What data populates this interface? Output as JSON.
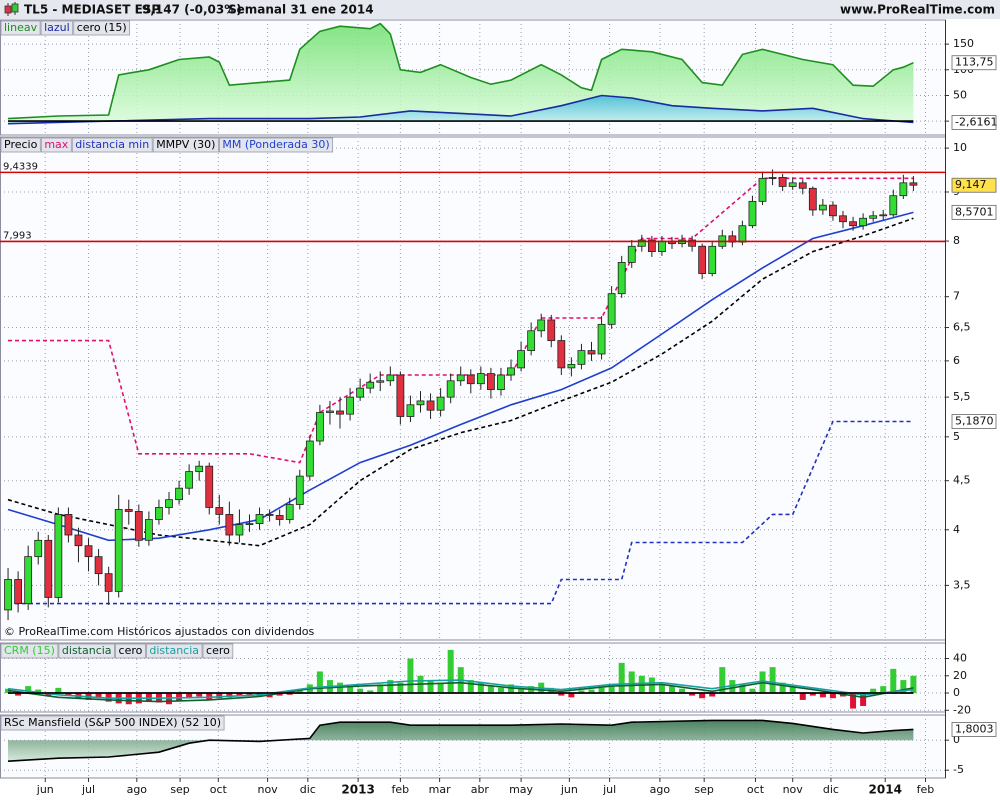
{
  "header": {
    "symbol": "TL5 - MEDIASET ESP",
    "change": "9,147 (-0,03%)",
    "period": "Semanal  31 ene 2014",
    "site": "www.ProRealTime.com"
  },
  "x_axis": {
    "xlim": [
      -0.8,
      93.14
    ],
    "xticks": [
      {
        "value": 3.7,
        "label": "jun"
      },
      {
        "value": 8,
        "label": "jul"
      },
      {
        "value": 12.8,
        "label": "ago"
      },
      {
        "value": 17.1,
        "label": "sep"
      },
      {
        "value": 20.9,
        "label": "oct"
      },
      {
        "value": 25.8,
        "label": "nov"
      },
      {
        "value": 29.8,
        "label": "dic"
      },
      {
        "value": 34.8,
        "label": "2013"
      },
      {
        "value": 39,
        "label": "feb"
      },
      {
        "value": 42.9,
        "label": "mar"
      },
      {
        "value": 46.9,
        "label": "abr"
      },
      {
        "value": 51,
        "label": "may"
      },
      {
        "value": 55.8,
        "label": "jun"
      },
      {
        "value": 59.8,
        "label": "jul"
      },
      {
        "value": 64.8,
        "label": "ago"
      },
      {
        "value": 69.2,
        "label": "sep"
      },
      {
        "value": 74.3,
        "label": "oct"
      },
      {
        "value": 78,
        "label": "nov"
      },
      {
        "value": 81.8,
        "label": "dic"
      },
      {
        "value": 87.2,
        "label": "2014"
      },
      {
        "value": 91.2,
        "label": "feb"
      }
    ]
  },
  "chart_data": [
    {
      "type": "area",
      "ylim": [
        -27,
        197
      ],
      "yticks": [
        0,
        50,
        100,
        150
      ],
      "grid": true,
      "series": [
        {
          "name": "lineav",
          "color": "#1e8e1e",
          "style": "area",
          "fill": "url(#gGreen)",
          "x": [
            0,
            5,
            10,
            11,
            14,
            17,
            20,
            21,
            22,
            25,
            28,
            29,
            31,
            33,
            36,
            37,
            38,
            39,
            41,
            43,
            46,
            48,
            50,
            53,
            55,
            57,
            58,
            59,
            61,
            64,
            67,
            69,
            71,
            73,
            75,
            77,
            79,
            82,
            84,
            86,
            88,
            89,
            90
          ],
          "values": [
            5,
            10,
            12,
            90,
            100,
            120,
            125,
            115,
            70,
            75,
            80,
            140,
            175,
            185,
            180,
            190,
            170,
            100,
            95,
            110,
            85,
            72,
            80,
            110,
            90,
            65,
            60,
            120,
            140,
            135,
            120,
            75,
            70,
            130,
            140,
            130,
            120,
            110,
            70,
            68,
            100,
            105,
            113.75
          ]
        },
        {
          "name": "lazul",
          "color": "#1a2aa0",
          "style": "area",
          "fill": "url(#gCyan)",
          "x": [
            0,
            10,
            20,
            30,
            35,
            40,
            45,
            50,
            55,
            59,
            62,
            66,
            70,
            75,
            80,
            85,
            90
          ],
          "values": [
            -5,
            0,
            5,
            5,
            8,
            20,
            15,
            10,
            30,
            50,
            45,
            30,
            25,
            20,
            25,
            5,
            -2.6161
          ]
        },
        {
          "name": "cero (15)",
          "color": "#000000",
          "style": "line",
          "x": [
            0,
            90
          ],
          "values": [
            0,
            0
          ]
        }
      ],
      "last_labels": [
        {
          "value": 113.75,
          "label": "113,75"
        },
        {
          "value": -2.6161,
          "label": "-2,6161"
        }
      ]
    },
    {
      "type": "candlestick",
      "log": true,
      "ylim": [
        3.07,
        10.27
      ],
      "grid": true,
      "yticks": [
        {
          "value": 3.5,
          "label": "3,5"
        },
        4,
        {
          "value": 4.5,
          "label": "4,5"
        },
        5,
        {
          "value": 5.5,
          "label": "5,5"
        },
        6,
        {
          "value": 6.5,
          "label": "6,5"
        },
        7,
        8,
        9,
        10
      ],
      "candles": {
        "name": "Precio",
        "color": "#000000",
        "up_color": "#33dd33",
        "down_color": "#e03040",
        "open": [
          3.3,
          3.55,
          3.35,
          3.75,
          3.9,
          3.4,
          4.15,
          3.95,
          3.85,
          3.75,
          3.6,
          3.45,
          4.2,
          4.18,
          3.9,
          4.1,
          4.22,
          4.3,
          4.42,
          4.6,
          4.66,
          4.22,
          4.15,
          3.95,
          4.05,
          4.06,
          4.15,
          4.14,
          4.1,
          4.25,
          4.55,
          4.95,
          5.3,
          5.32,
          5.28,
          5.5,
          5.62,
          5.7,
          5.72,
          5.8,
          5.25,
          5.4,
          5.45,
          5.33,
          5.5,
          5.72,
          5.8,
          5.68,
          5.82,
          5.6,
          5.8,
          5.9,
          6.15,
          6.45,
          6.62,
          6.3,
          5.9,
          5.95,
          6.15,
          6.1,
          6.55,
          7.05,
          7.6,
          7.9,
          8.02,
          7.8,
          8.0,
          7.95,
          8.02,
          7.9,
          7.4,
          7.9,
          8.1,
          7.98,
          8.3,
          8.8,
          9.3,
          9.32,
          9.12,
          9.2,
          9.08,
          8.62,
          8.72,
          8.5,
          8.38,
          8.3,
          8.45,
          8.5,
          8.52,
          8.92,
          9.2
        ],
        "high": [
          3.65,
          3.62,
          3.85,
          3.98,
          3.95,
          4.22,
          4.22,
          4.02,
          3.92,
          3.82,
          3.66,
          4.35,
          4.3,
          4.25,
          4.18,
          4.3,
          4.38,
          4.5,
          4.68,
          4.72,
          4.7,
          4.35,
          4.28,
          4.2,
          4.15,
          4.22,
          4.2,
          4.2,
          4.32,
          4.62,
          5.02,
          5.4,
          5.45,
          5.5,
          5.62,
          5.75,
          5.82,
          5.85,
          5.92,
          5.85,
          5.52,
          5.58,
          5.55,
          5.62,
          5.82,
          5.92,
          5.88,
          5.92,
          5.9,
          5.9,
          6.02,
          6.28,
          6.58,
          6.72,
          6.7,
          6.38,
          6.05,
          6.25,
          6.28,
          6.68,
          7.18,
          7.72,
          8.02,
          8.12,
          8.1,
          8.1,
          8.08,
          8.12,
          8.1,
          7.95,
          8.0,
          8.22,
          8.2,
          8.4,
          8.92,
          9.45,
          9.5,
          9.4,
          9.32,
          9.28,
          9.12,
          8.85,
          8.8,
          8.6,
          8.48,
          8.55,
          8.6,
          8.62,
          9.05,
          9.38,
          9.35
        ],
        "low": [
          3.22,
          3.28,
          3.3,
          3.68,
          3.32,
          3.36,
          3.88,
          3.7,
          3.62,
          3.5,
          3.34,
          3.4,
          4.05,
          3.84,
          3.85,
          4.05,
          4.15,
          4.25,
          4.35,
          4.5,
          4.15,
          4.05,
          3.85,
          3.88,
          3.98,
          4.0,
          4.08,
          4.04,
          4.06,
          4.2,
          4.5,
          4.9,
          5.15,
          5.1,
          5.2,
          5.45,
          5.55,
          5.58,
          5.65,
          5.15,
          5.18,
          5.3,
          5.22,
          5.25,
          5.42,
          5.65,
          5.55,
          5.6,
          5.48,
          5.52,
          5.72,
          5.85,
          6.08,
          6.35,
          6.2,
          5.8,
          5.78,
          5.88,
          6.0,
          6.02,
          6.48,
          6.98,
          7.5,
          7.8,
          7.7,
          7.72,
          7.85,
          7.88,
          7.8,
          7.3,
          7.35,
          7.85,
          7.88,
          7.92,
          8.25,
          8.72,
          9.15,
          9.02,
          9.05,
          8.95,
          8.5,
          8.52,
          8.4,
          8.25,
          8.2,
          8.22,
          8.38,
          8.42,
          8.48,
          8.85,
          9.02
        ],
        "close": [
          3.55,
          3.35,
          3.75,
          3.9,
          3.4,
          4.15,
          3.95,
          3.85,
          3.75,
          3.6,
          3.45,
          4.2,
          4.18,
          3.9,
          4.1,
          4.22,
          4.3,
          4.42,
          4.6,
          4.66,
          4.22,
          4.15,
          3.95,
          4.05,
          4.06,
          4.15,
          4.14,
          4.1,
          4.25,
          4.55,
          4.95,
          5.3,
          5.32,
          5.28,
          5.5,
          5.62,
          5.7,
          5.72,
          5.8,
          5.25,
          5.4,
          5.45,
          5.33,
          5.5,
          5.72,
          5.8,
          5.68,
          5.82,
          5.6,
          5.8,
          5.9,
          6.15,
          6.45,
          6.62,
          6.3,
          5.9,
          5.95,
          6.15,
          6.1,
          6.55,
          7.05,
          7.6,
          7.9,
          8.02,
          7.8,
          8.0,
          7.95,
          8.02,
          7.9,
          7.4,
          7.9,
          8.1,
          7.98,
          8.3,
          8.8,
          9.3,
          9.32,
          9.12,
          9.2,
          9.08,
          8.62,
          8.72,
          8.5,
          8.38,
          8.3,
          8.45,
          8.5,
          8.52,
          8.92,
          9.2,
          9.147
        ]
      },
      "series": [
        {
          "name": "max",
          "color": "#e0106e",
          "style": "dashed",
          "x": [
            0,
            10,
            13,
            24,
            29,
            31,
            37,
            50,
            53,
            59,
            63,
            68,
            75,
            90
          ],
          "values": [
            6.3,
            6.3,
            4.8,
            4.8,
            4.7,
            5.3,
            5.8,
            5.8,
            6.65,
            6.65,
            8.05,
            8.05,
            9.3,
            9.3
          ]
        },
        {
          "name": "distancia min",
          "color": "#2030c0",
          "style": "dashed",
          "x": [
            0,
            54,
            55,
            61,
            62,
            73,
            76,
            78,
            82,
            90
          ],
          "values": [
            3.35,
            3.35,
            3.55,
            3.55,
            3.88,
            3.88,
            4.15,
            4.15,
            5.187,
            5.187
          ]
        },
        {
          "name": "MMPV (30)",
          "color": "#000000",
          "style": "dashed",
          "x": [
            0,
            5,
            10,
            15,
            20,
            25,
            30,
            35,
            40,
            45,
            50,
            55,
            60,
            65,
            70,
            75,
            80,
            85,
            90
          ],
          "values": [
            4.3,
            4.15,
            4.05,
            3.95,
            3.9,
            3.85,
            4.05,
            4.5,
            4.85,
            5.05,
            5.2,
            5.45,
            5.7,
            6.1,
            6.6,
            7.3,
            7.8,
            8.1,
            8.45
          ]
        },
        {
          "name": "MM (Ponderada 30)",
          "color": "#1f3fd0",
          "style": "line",
          "x": [
            0,
            5,
            10,
            15,
            20,
            25,
            30,
            35,
            40,
            45,
            50,
            55,
            60,
            65,
            70,
            75,
            80,
            85,
            90
          ],
          "values": [
            4.2,
            4.05,
            3.9,
            3.92,
            4.0,
            4.1,
            4.4,
            4.7,
            4.9,
            5.15,
            5.4,
            5.6,
            5.9,
            6.4,
            6.95,
            7.5,
            8.05,
            8.3,
            8.5701
          ]
        }
      ],
      "hlines": [
        {
          "value": 9.4339,
          "label": "9,4339",
          "color": "#dd0000"
        },
        {
          "value": 7.993,
          "label": "7,993",
          "color": "#dd0000"
        }
      ],
      "last_labels": [
        {
          "value": 9.147,
          "label": "9,147",
          "color": "#ffe14d"
        },
        {
          "value": 8.5701,
          "label": "8,5701"
        },
        {
          "value": 5.187,
          "label": "5,1870"
        }
      ],
      "note": "© ProRealTime.com Históricos ajustados con dividendos"
    },
    {
      "type": "bar",
      "ylim": [
        -22,
        58
      ],
      "yticks": [
        -20,
        0,
        20,
        40
      ],
      "grid": true,
      "histogram": {
        "name": "CRM (15)",
        "color": "#33cc33",
        "negative_color": "#dd1133",
        "values": [
          5,
          -3,
          8,
          4,
          -4,
          6,
          -3,
          -6,
          -8,
          -5,
          -10,
          -12,
          -13,
          -12,
          -10,
          -11,
          -13,
          -9,
          -6,
          -4,
          -8,
          -6,
          -5,
          -3,
          -2,
          -4,
          -5,
          -3,
          -2,
          3,
          10,
          25,
          15,
          12,
          8,
          5,
          3,
          10,
          15,
          12,
          40,
          20,
          15,
          12,
          50,
          30,
          15,
          12,
          8,
          6,
          10,
          5,
          8,
          12,
          6,
          -3,
          -5,
          3,
          4,
          6,
          8,
          35,
          25,
          20,
          18,
          10,
          8,
          5,
          -3,
          -6,
          -4,
          30,
          15,
          10,
          5,
          25,
          30,
          12,
          8,
          -8,
          -3,
          -5,
          -6,
          -4,
          -18,
          -15,
          5,
          8,
          28,
          15,
          20
        ]
      },
      "series": [
        {
          "name": "distancia",
          "color": "#0f5f2f",
          "style": "line",
          "x": [
            0,
            5,
            10,
            15,
            20,
            25,
            30,
            35,
            40,
            45,
            50,
            55,
            60,
            65,
            70,
            75,
            80,
            85,
            90
          ],
          "values": [
            3,
            -5,
            -8,
            -10,
            -8,
            -4,
            5,
            8,
            10,
            12,
            6,
            2,
            8,
            10,
            2,
            12,
            4,
            -5,
            6
          ]
        },
        {
          "name": "cero",
          "color": "#000000",
          "style": "line",
          "x": [
            0,
            90
          ],
          "values": [
            0,
            0
          ]
        },
        {
          "name": "distancia",
          "color": "#1aa0a0",
          "style": "line",
          "x": [
            0,
            5,
            10,
            15,
            20,
            25,
            30,
            35,
            40,
            45,
            50,
            55,
            60,
            65,
            70,
            75,
            80,
            85,
            90
          ],
          "values": [
            5,
            -2,
            -6,
            -6,
            -5,
            -2,
            6,
            10,
            14,
            15,
            8,
            4,
            10,
            12,
            5,
            14,
            6,
            -2,
            4
          ]
        },
        {
          "name": "cero",
          "color": "#000000",
          "style": "line",
          "x": [
            0,
            90
          ],
          "values": [
            0,
            0
          ]
        }
      ]
    },
    {
      "type": "area",
      "ylim": [
        -6.3,
        4.2
      ],
      "yticks": [
        -5,
        0
      ],
      "grid": true,
      "series": [
        {
          "name": "RSc Mansfield (S&P 500 INDEX) (52 10)",
          "color": "#000000",
          "style": "area",
          "fill": "url(#gDark)",
          "x": [
            0,
            5,
            10,
            15,
            18,
            20,
            25,
            30,
            31,
            33,
            38,
            40,
            45,
            50,
            55,
            60,
            62,
            70,
            75,
            78,
            80,
            82,
            85,
            88,
            90
          ],
          "values": [
            -3.5,
            -3,
            -2.8,
            -2,
            -0.5,
            0,
            -0.2,
            0.3,
            2.5,
            3,
            3,
            2.5,
            2.5,
            2.5,
            2.7,
            2.5,
            3,
            3.3,
            3.3,
            2.8,
            2.3,
            1.8,
            1.2,
            1.6,
            1.8003
          ]
        }
      ],
      "last_labels": [
        {
          "value": 1.8003,
          "label": "1,8003"
        }
      ]
    }
  ]
}
